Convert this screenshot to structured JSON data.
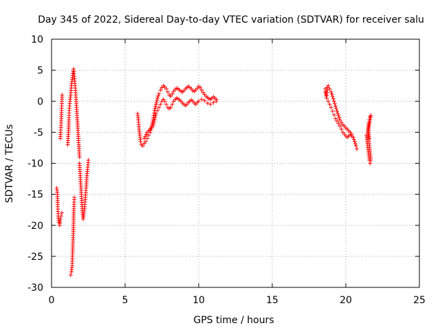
{
  "chart_data": {
    "type": "scatter",
    "title": "Day 345 of 2022, Sidereal Day-to-day VTEC variation (SDTVAR) for receiver salu",
    "xlabel": "GPS time / hours",
    "ylabel": "SDTVAR / TECUs",
    "xlim": [
      0,
      25
    ],
    "ylim": [
      -30,
      10
    ],
    "xticks": [
      0,
      5,
      10,
      15,
      20,
      25
    ],
    "yticks": [
      10,
      5,
      0,
      -5,
      -10,
      -15,
      -20,
      -25,
      -30
    ],
    "grid": true,
    "marker": "+",
    "series": [
      {
        "name": "SDTVAR",
        "color": "#ff0000",
        "segments": [
          [
            [
              0.35,
              -14
            ],
            [
              0.4,
              -15
            ],
            [
              0.42,
              -17
            ],
            [
              0.45,
              -18.5
            ],
            [
              0.5,
              -19.5
            ],
            [
              0.55,
              -20
            ],
            [
              0.6,
              -19
            ],
            [
              0.65,
              -18.5
            ],
            [
              0.7,
              -18
            ]
          ],
          [
            [
              0.6,
              -6
            ],
            [
              0.62,
              -5
            ],
            [
              0.65,
              -3.5
            ],
            [
              0.68,
              -1.5
            ],
            [
              0.7,
              0
            ],
            [
              0.72,
              1
            ]
          ],
          [
            [
              1.1,
              -7
            ],
            [
              1.12,
              -6
            ],
            [
              1.15,
              -5
            ],
            [
              1.18,
              -3
            ],
            [
              1.2,
              -1.5
            ],
            [
              1.25,
              0
            ],
            [
              1.3,
              1
            ],
            [
              1.35,
              2.5
            ],
            [
              1.4,
              3.5
            ],
            [
              1.45,
              4.5
            ],
            [
              1.5,
              5.2
            ],
            [
              1.55,
              4
            ],
            [
              1.6,
              2.5
            ],
            [
              1.65,
              1
            ],
            [
              1.7,
              -1
            ],
            [
              1.75,
              -3
            ],
            [
              1.8,
              -5
            ],
            [
              1.85,
              -7
            ],
            [
              1.9,
              -9
            ]
          ],
          [
            [
              1.3,
              -28
            ],
            [
              1.35,
              -27.5
            ],
            [
              1.4,
              -26.5
            ],
            [
              1.42,
              -25
            ],
            [
              1.45,
              -23
            ],
            [
              1.48,
              -21
            ],
            [
              1.5,
              -19
            ],
            [
              1.52,
              -17
            ],
            [
              1.55,
              -15.5
            ]
          ],
          [
            [
              1.9,
              -10
            ],
            [
              1.95,
              -12
            ],
            [
              2.0,
              -14
            ],
            [
              2.05,
              -16
            ],
            [
              2.1,
              -18
            ],
            [
              2.15,
              -19
            ],
            [
              2.2,
              -18
            ],
            [
              2.25,
              -17
            ],
            [
              2.3,
              -15.5
            ],
            [
              2.35,
              -14
            ],
            [
              2.4,
              -12
            ],
            [
              2.45,
              -11
            ],
            [
              2.5,
              -9.5
            ]
          ],
          [
            [
              5.85,
              -2
            ],
            [
              5.9,
              -3
            ],
            [
              5.95,
              -4.5
            ],
            [
              6.0,
              -5.5
            ],
            [
              6.05,
              -6.5
            ],
            [
              6.1,
              -7
            ],
            [
              6.2,
              -7.2
            ],
            [
              6.3,
              -6.8
            ],
            [
              6.4,
              -6.5
            ],
            [
              6.5,
              -6
            ],
            [
              6.6,
              -5.5
            ],
            [
              6.7,
              -5
            ],
            [
              6.8,
              -4
            ],
            [
              6.9,
              -3
            ],
            [
              7.0,
              -1.5
            ],
            [
              7.1,
              -0.5
            ],
            [
              7.2,
              0.5
            ],
            [
              7.3,
              1.2
            ],
            [
              7.4,
              1.8
            ],
            [
              7.5,
              2.2
            ],
            [
              7.6,
              2.5
            ],
            [
              7.7,
              2.3
            ],
            [
              7.8,
              2
            ],
            [
              7.9,
              1.5
            ],
            [
              8.0,
              1
            ],
            [
              8.1,
              0.8
            ],
            [
              8.2,
              1.2
            ],
            [
              8.3,
              1.6
            ],
            [
              8.4,
              1.9
            ],
            [
              8.5,
              2.1
            ],
            [
              8.6,
              2
            ],
            [
              8.7,
              1.8
            ],
            [
              8.8,
              1.6
            ],
            [
              8.9,
              1.5
            ],
            [
              9.0,
              1.7
            ],
            [
              9.1,
              2
            ],
            [
              9.2,
              2.2
            ],
            [
              9.3,
              2.4
            ],
            [
              9.4,
              2.2
            ],
            [
              9.5,
              2
            ],
            [
              9.6,
              1.7
            ],
            [
              9.7,
              1.6
            ],
            [
              9.8,
              1.8
            ],
            [
              9.9,
              2.1
            ],
            [
              10.0,
              2.4
            ],
            [
              10.1,
              2.2
            ],
            [
              10.2,
              1.8
            ],
            [
              10.3,
              1.4
            ],
            [
              10.4,
              1.1
            ],
            [
              10.5,
              0.8
            ],
            [
              10.6,
              0.6
            ],
            [
              10.7,
              0.4
            ],
            [
              10.8,
              0.3
            ],
            [
              10.9,
              0.5
            ],
            [
              11.0,
              0.7
            ],
            [
              11.1,
              0.5
            ],
            [
              11.2,
              0.3
            ]
          ],
          [
            [
              6.3,
              -6
            ],
            [
              6.5,
              -5
            ],
            [
              6.7,
              -4.5
            ],
            [
              6.9,
              -4
            ],
            [
              7.0,
              -3
            ],
            [
              7.1,
              -2
            ],
            [
              7.2,
              -1.5
            ],
            [
              7.3,
              -1
            ],
            [
              7.4,
              -0.5
            ],
            [
              7.5,
              0
            ],
            [
              7.6,
              0.3
            ],
            [
              7.7,
              0
            ],
            [
              7.8,
              -0.5
            ],
            [
              7.9,
              -1
            ],
            [
              8.0,
              -1.2
            ],
            [
              8.1,
              -1
            ],
            [
              8.2,
              -0.5
            ],
            [
              8.3,
              0
            ],
            [
              8.4,
              0.3
            ],
            [
              8.5,
              0.5
            ],
            [
              8.6,
              0.4
            ],
            [
              8.7,
              0.2
            ],
            [
              8.8,
              0
            ],
            [
              8.9,
              -0.3
            ],
            [
              9.0,
              -0.5
            ],
            [
              9.1,
              -0.7
            ],
            [
              9.2,
              -0.5
            ],
            [
              9.3,
              -0.2
            ],
            [
              9.4,
              0
            ],
            [
              9.5,
              0.2
            ],
            [
              9.6,
              0
            ],
            [
              9.7,
              -0.3
            ],
            [
              9.8,
              -0.5
            ],
            [
              9.9,
              -0.2
            ],
            [
              10.0,
              0
            ],
            [
              10.2,
              0.3
            ],
            [
              10.4,
              0.1
            ],
            [
              10.6,
              -0.3
            ],
            [
              10.8,
              -0.5
            ],
            [
              11.0,
              -0.2
            ],
            [
              11.2,
              0
            ]
          ],
          [
            [
              18.6,
              2
            ],
            [
              18.65,
              1.5
            ],
            [
              18.7,
              1
            ],
            [
              18.75,
              2.2
            ],
            [
              18.8,
              2.5
            ],
            [
              18.9,
              2
            ],
            [
              19.0,
              1.5
            ],
            [
              19.1,
              0.8
            ],
            [
              19.2,
              0
            ],
            [
              19.3,
              -0.8
            ],
            [
              19.4,
              -1.6
            ],
            [
              19.5,
              -2.3
            ],
            [
              19.6,
              -3
            ],
            [
              19.7,
              -3.4
            ],
            [
              19.8,
              -3.8
            ],
            [
              19.9,
              -4
            ],
            [
              20.0,
              -4.3
            ],
            [
              20.1,
              -4.5
            ],
            [
              20.2,
              -4.8
            ],
            [
              20.3,
              -5
            ],
            [
              20.4,
              -5.3
            ],
            [
              20.5,
              -5.8
            ],
            [
              20.6,
              -6.5
            ],
            [
              20.7,
              -7.2
            ],
            [
              20.75,
              -7.7
            ]
          ],
          [
            [
              18.6,
              1.5
            ],
            [
              18.7,
              0.5
            ],
            [
              18.8,
              0
            ],
            [
              18.9,
              -0.5
            ],
            [
              19.0,
              -1
            ],
            [
              19.1,
              -1.6
            ],
            [
              19.2,
              -2.2
            ],
            [
              19.3,
              -2.8
            ],
            [
              19.4,
              -3.2
            ],
            [
              19.5,
              -3.6
            ],
            [
              19.6,
              -4
            ],
            [
              19.7,
              -4.5
            ],
            [
              19.8,
              -5
            ],
            [
              19.9,
              -5.3
            ],
            [
              20.0,
              -5.6
            ],
            [
              20.1,
              -5.8
            ],
            [
              20.2,
              -5.6
            ],
            [
              20.3,
              -5.4
            ],
            [
              20.4,
              -5.6
            ]
          ],
          [
            [
              21.4,
              -5.5
            ],
            [
              21.45,
              -6.5
            ],
            [
              21.5,
              -7.5
            ],
            [
              21.55,
              -8.5
            ],
            [
              21.6,
              -9.5
            ],
            [
              21.65,
              -10
            ],
            [
              21.7,
              -9.5
            ],
            [
              21.5,
              -4.5
            ],
            [
              21.55,
              -3.5
            ],
            [
              21.6,
              -3
            ],
            [
              21.65,
              -2.5
            ],
            [
              21.7,
              -2.3
            ],
            [
              21.52,
              -5
            ],
            [
              21.58,
              -6
            ]
          ]
        ]
      }
    ]
  }
}
